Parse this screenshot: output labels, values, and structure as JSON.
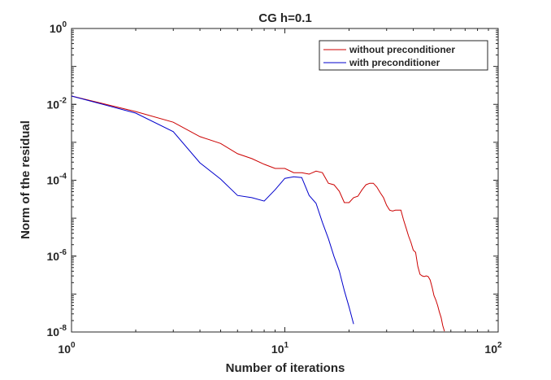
{
  "chart_data": {
    "type": "line",
    "title": "CG h=0.1",
    "xlabel": "Number of iterations",
    "ylabel": "Norm of the residual",
    "xscale": "log",
    "yscale": "log",
    "xlim": [
      1,
      100
    ],
    "ylim": [
      1e-08,
      1
    ],
    "xticks": [
      {
        "base": "10",
        "exp": "0",
        "value": 1
      },
      {
        "base": "10",
        "exp": "1",
        "value": 10
      },
      {
        "base": "10",
        "exp": "2",
        "value": 100
      }
    ],
    "yticks": [
      {
        "base": "10",
        "exp": "0",
        "value": 1
      },
      {
        "base": "10",
        "exp": "-2",
        "value": 0.01
      },
      {
        "base": "10",
        "exp": "-4",
        "value": 0.0001
      },
      {
        "base": "10",
        "exp": "-6",
        "value": 1e-06
      },
      {
        "base": "10",
        "exp": "-8",
        "value": 1e-08
      }
    ],
    "grid": false,
    "legend_position": "top-right",
    "series": [
      {
        "name": "without preconditioner",
        "color": "#cc0000",
        "x": [
          1,
          2,
          3,
          4,
          5,
          6,
          7,
          8,
          9,
          10,
          11,
          12,
          13,
          14,
          15,
          16,
          17,
          18,
          19,
          20,
          21,
          22,
          23,
          24,
          25,
          26,
          27,
          28,
          29,
          30,
          31,
          32,
          33,
          34,
          35,
          36,
          37,
          38,
          39,
          40,
          41,
          42,
          43,
          44,
          45,
          46,
          47,
          48,
          49,
          50,
          51,
          52,
          53,
          54,
          55,
          56
        ],
        "log10_y": [
          -1.78,
          -2.19,
          -2.47,
          -2.85,
          -3.03,
          -3.3,
          -3.43,
          -3.58,
          -3.69,
          -3.69,
          -3.8,
          -3.8,
          -3.84,
          -3.76,
          -3.8,
          -4.08,
          -4.12,
          -4.29,
          -4.59,
          -4.59,
          -4.46,
          -4.42,
          -4.25,
          -4.12,
          -4.08,
          -4.08,
          -4.18,
          -4.33,
          -4.46,
          -4.66,
          -4.79,
          -4.81,
          -4.79,
          -4.79,
          -4.79,
          -5.04,
          -5.26,
          -5.47,
          -5.64,
          -5.84,
          -5.9,
          -6.27,
          -6.48,
          -6.52,
          -6.54,
          -6.52,
          -6.54,
          -6.63,
          -6.82,
          -7.04,
          -7.15,
          -7.3,
          -7.47,
          -7.62,
          -7.83,
          -7.98
        ]
      },
      {
        "name": "with preconditioner",
        "color": "#0000cc",
        "x": [
          1,
          2,
          3,
          4,
          5,
          6,
          7,
          8,
          9,
          10,
          11,
          12,
          13,
          14,
          15,
          16,
          17,
          18,
          19,
          20,
          21
        ],
        "log10_y": [
          -1.78,
          -2.23,
          -2.72,
          -3.54,
          -3.97,
          -4.4,
          -4.46,
          -4.55,
          -4.25,
          -3.95,
          -3.91,
          -3.93,
          -4.4,
          -4.61,
          -5.11,
          -5.54,
          -6.01,
          -6.39,
          -6.91,
          -7.34,
          -7.79
        ]
      }
    ]
  }
}
